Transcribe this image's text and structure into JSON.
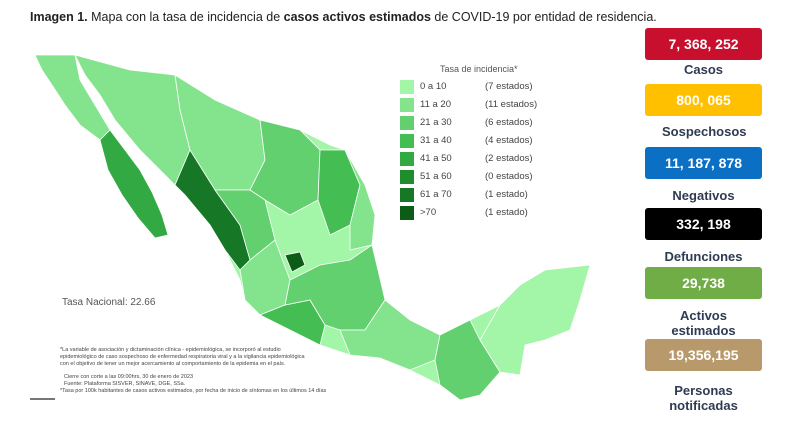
{
  "title": {
    "parts": [
      {
        "text": "Imagen 1.",
        "bold": true
      },
      {
        "text": " Mapa con la tasa de incidencia de ",
        "bold": false
      },
      {
        "text": "casos activos estimados",
        "bold": true
      },
      {
        "text": " de COVID-19 por entidad de residencia.",
        "bold": false
      }
    ]
  },
  "legend": {
    "title": "Tasa de incidencia*",
    "items": [
      {
        "range": "0 a 10",
        "count": "(7 estados)",
        "color": "#a3f5a8"
      },
      {
        "range": "11 a 20",
        "count": "(11 estados)",
        "color": "#84e48d"
      },
      {
        "range": "21 a 30",
        "count": "(6 estados)",
        "color": "#62d06f"
      },
      {
        "range": "31 a 40",
        "count": "(4 estados)",
        "color": "#44bd53"
      },
      {
        "range": "41 a 50",
        "count": "(2 estados)",
        "color": "#33a943"
      },
      {
        "range": "51 a 60",
        "count": "(0 estados)",
        "color": "#1f8c2e"
      },
      {
        "range": "61 a 70",
        "count": "(1 estado)",
        "color": "#167826"
      },
      {
        "range": ">70",
        "count": "(1 estado)",
        "color": "#0c5c17"
      }
    ]
  },
  "national_rate": "Tasa Nacional: 22.66",
  "notes": [
    "*La variable de asociación y dictaminación clínica - epidemiológica, se incorporó al estudio",
    "epidemiológico de caso sospechoso de enfermedad respiratoria viral y a la vigilancia epidemiológica",
    "con el objetivo de tener un mejor acercamiento al comportamiento de la epidemia en el país.",
    "Cierre con corte a las 09:00hrs, 30 de enero de 2023",
    "Fuente: Plataforma SISVER, SINAVE, DGE, SSa.",
    "*Tasa por 100k habitantes de casos activos estimados, por fecha de inicio de síntomas en los últimos 14 días"
  ],
  "stats": [
    {
      "value": "7, 368, 252",
      "label": "Casos",
      "color": "#c8102e"
    },
    {
      "value": "800, 065",
      "label": "Sospechosos",
      "color": "#ffc000"
    },
    {
      "value": "11, 187, 878",
      "label": "Negativos",
      "color": "#0b6fc4"
    },
    {
      "value": "332, 198",
      "label": "Defunciones",
      "color": "#000000"
    },
    {
      "value": "29,738",
      "label": "Activos estimados",
      "color": "#70ad47"
    },
    {
      "value": "19,356,195",
      "label": "Personas notificadas",
      "color": "#b8996b"
    }
  ]
}
